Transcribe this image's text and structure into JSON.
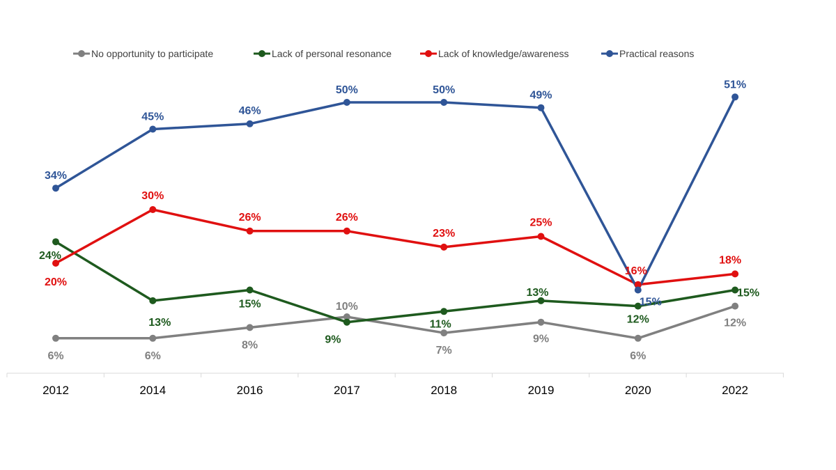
{
  "chart_data": {
    "type": "line",
    "title": "",
    "xlabel": "",
    "ylabel": "",
    "ylim": [
      0,
      60
    ],
    "grid": false,
    "legend_position": "top",
    "categories": [
      "2012",
      "2014",
      "2016",
      "2017",
      "2018",
      "2019",
      "2020",
      "2022"
    ],
    "series": [
      {
        "name": "No opportunity to participate",
        "color": "#808080",
        "values": [
          6,
          6,
          8,
          10,
          7,
          9,
          6,
          12
        ],
        "labels": [
          "6%",
          "6%",
          "8%",
          "10%",
          "7%",
          "9%",
          "6%",
          "12%"
        ]
      },
      {
        "name": "Lack of personal resonance",
        "color": "#1e5a1e",
        "values": [
          24,
          13,
          15,
          9,
          11,
          13,
          12,
          15
        ],
        "labels": [
          "24%",
          "13%",
          "15%",
          "9%",
          "11%",
          "13%",
          "12%",
          "15%"
        ]
      },
      {
        "name": "Lack of knowledge/awareness",
        "color": "#e01010",
        "values": [
          20,
          30,
          26,
          26,
          23,
          25,
          16,
          18
        ],
        "labels": [
          "20%",
          "30%",
          "26%",
          "26%",
          "23%",
          "25%",
          "16%",
          "18%"
        ]
      },
      {
        "name": "Practical reasons",
        "color": "#2f5597",
        "values": [
          34,
          45,
          46,
          50,
          50,
          49,
          15,
          51
        ],
        "labels": [
          "34%",
          "45%",
          "46%",
          "50%",
          "50%",
          "49%",
          "15%",
          "51%"
        ]
      }
    ]
  }
}
